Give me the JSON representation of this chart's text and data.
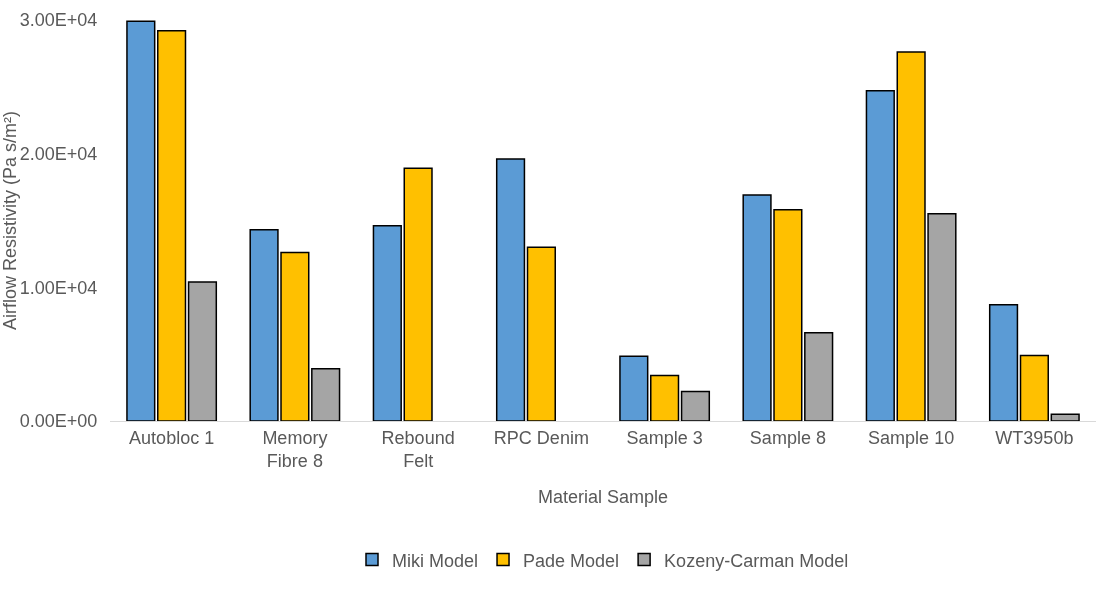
{
  "chart_data": {
    "type": "bar",
    "xlabel": "Material Sample",
    "ylabel": "Airflow Resistivity (Pa s/m²)",
    "categories": [
      "Autobloc 1",
      "Memory Fibre 8",
      "Rebound Felt",
      "RPC Denim",
      "Sample 3",
      "Sample 8",
      "Sample 10",
      "WT3950b"
    ],
    "series": [
      {
        "name": "Miki Model",
        "color": "#5b9bd5",
        "values": [
          29900,
          14300,
          14600,
          19600,
          4850,
          16900,
          24700,
          8700
        ]
      },
      {
        "name": "Pade Model",
        "color": "#ffc000",
        "values": [
          29200,
          12600,
          18900,
          13000,
          3400,
          15800,
          27600,
          4900
        ]
      },
      {
        "name": "Kozeny-Carman Model",
        "color": "#a5a5a5",
        "values": [
          10400,
          3900,
          null,
          null,
          2200,
          6600,
          15500,
          500
        ]
      }
    ],
    "ylim": [
      0,
      30000
    ],
    "yticks": [
      {
        "value": 0,
        "label": "0.00E+00"
      },
      {
        "value": 10000,
        "label": "1.00E+04"
      },
      {
        "value": 20000,
        "label": "2.00E+04"
      },
      {
        "value": 30000,
        "label": "3.00E+04"
      }
    ],
    "grid": false,
    "legend": "bottom"
  }
}
